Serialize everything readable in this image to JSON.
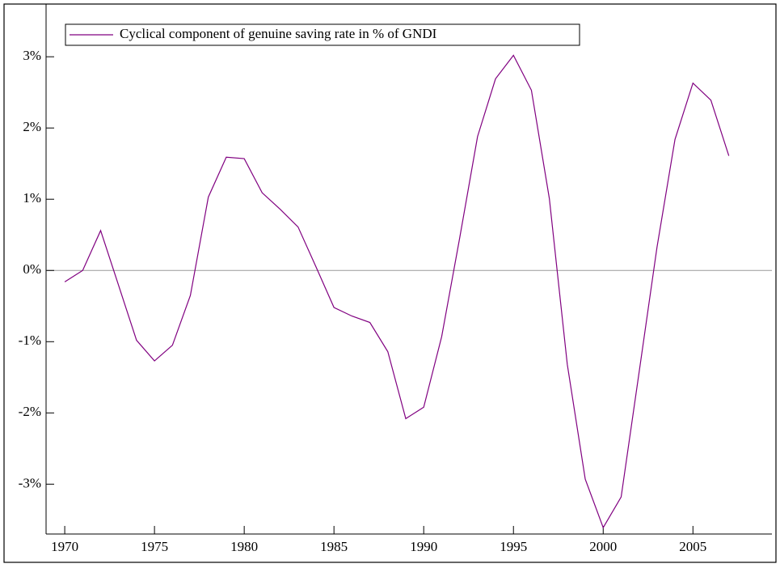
{
  "chart_data": {
    "type": "line",
    "x": [
      1970,
      1971,
      1972,
      1973,
      1974,
      1975,
      1976,
      1977,
      1978,
      1979,
      1980,
      1981,
      1982,
      1983,
      1984,
      1985,
      1986,
      1987,
      1988,
      1989,
      1990,
      1991,
      1992,
      1993,
      1994,
      1995,
      1996,
      1997,
      1998,
      1999,
      2000,
      2001,
      2002,
      2003,
      2004,
      2005,
      2006,
      2007
    ],
    "series": [
      {
        "name": "Cyclical component of genuine saving rate in % of GNDI",
        "color": "#800080",
        "values": [
          -0.16,
          0.0,
          0.56,
          -0.21,
          -0.98,
          -1.27,
          -1.05,
          -0.35,
          1.03,
          1.59,
          1.57,
          1.09,
          0.86,
          0.61,
          0.05,
          -0.52,
          -0.64,
          -0.73,
          -1.14,
          -2.08,
          -1.92,
          -0.93,
          0.45,
          1.88,
          2.69,
          3.02,
          2.53,
          1.01,
          -1.32,
          -2.93,
          -3.61,
          -3.18,
          -1.43,
          0.33,
          1.84,
          2.63,
          2.39,
          1.61
        ]
      }
    ],
    "xlim": [
      1968.96,
      2009.4
    ],
    "xticks": [
      1970,
      1975,
      1980,
      1985,
      1990,
      1995,
      2000,
      2005
    ],
    "ylim": [
      -3.7,
      3.74
    ],
    "yticks": [
      {
        "value": -3,
        "label": "-3%"
      },
      {
        "value": -2,
        "label": "-2%"
      },
      {
        "value": -1,
        "label": "-1%"
      },
      {
        "value": 0,
        "label": "0%"
      },
      {
        "value": 1,
        "label": "1%"
      },
      {
        "value": 2,
        "label": "2%"
      },
      {
        "value": 3,
        "label": "3%"
      }
    ],
    "zero_line": true,
    "legend": "top-left"
  }
}
